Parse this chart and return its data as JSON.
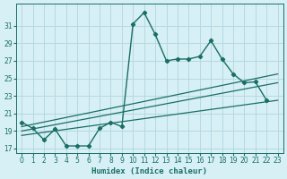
{
  "xlabel": "Humidex (Indice chaleur)",
  "background_color": "#d6f0f5",
  "grid_color": "#b8d8e0",
  "line_color": "#1a6e65",
  "xlim": [
    -0.5,
    23.5
  ],
  "ylim": [
    16.5,
    33.5
  ],
  "xticks": [
    0,
    1,
    2,
    3,
    4,
    5,
    6,
    7,
    8,
    9,
    10,
    11,
    12,
    13,
    14,
    15,
    16,
    17,
    18,
    19,
    20,
    21,
    22,
    23
  ],
  "yticks": [
    17,
    19,
    21,
    23,
    25,
    27,
    29,
    31
  ],
  "main_x": [
    0,
    1,
    2,
    3,
    4,
    5,
    6,
    7,
    8,
    9,
    10,
    11,
    12,
    13,
    14,
    15,
    16,
    17,
    18,
    19,
    20,
    21,
    22
  ],
  "main_y": [
    20.0,
    19.3,
    18.0,
    19.2,
    17.3,
    17.3,
    17.3,
    19.3,
    20.0,
    19.5,
    31.2,
    32.5,
    30.0,
    27.0,
    27.2,
    27.2,
    27.5,
    29.3,
    27.2,
    25.5,
    24.5,
    24.6,
    22.5
  ],
  "line1_x": [
    0,
    23
  ],
  "line1_y": [
    19.5,
    25.5
  ],
  "line2_x": [
    0,
    23
  ],
  "line2_y": [
    19.0,
    24.5
  ],
  "line3_x": [
    0,
    23
  ],
  "line3_y": [
    18.5,
    22.5
  ],
  "tick_fontsize": 5.5,
  "xlabel_fontsize": 6.5
}
